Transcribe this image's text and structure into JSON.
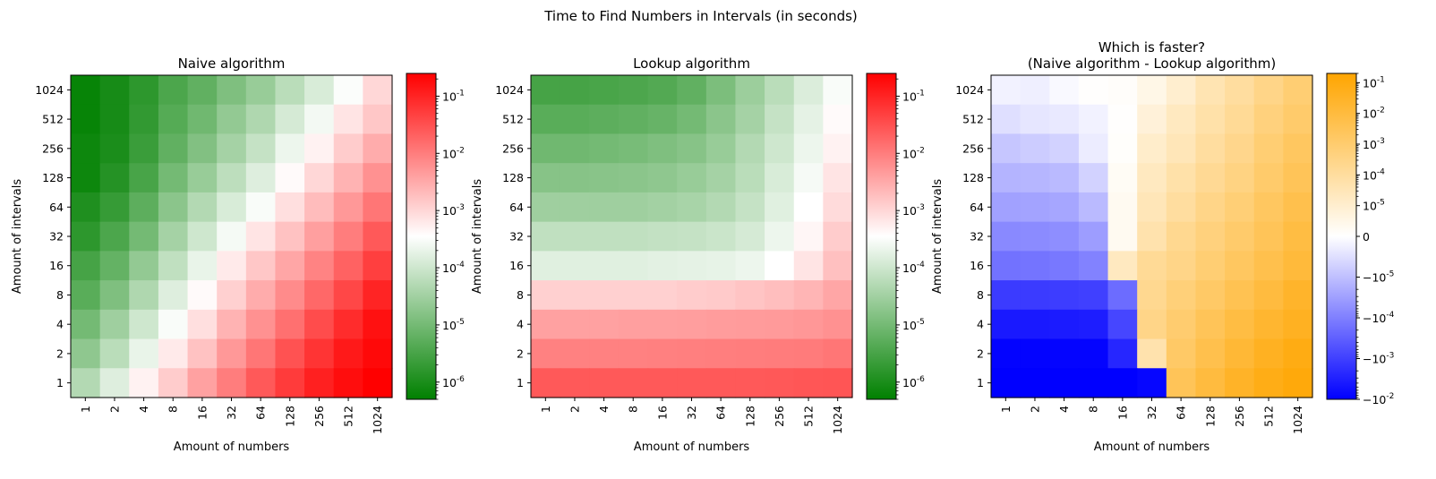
{
  "figure": {
    "suptitle": "Time to Find Numbers in Intervals (in seconds)"
  },
  "chart_data": [
    {
      "type": "heatmap",
      "title": "Naive algorithm",
      "title_color": "#0000ff",
      "xlabel": "Amount of numbers",
      "ylabel": "Amount of intervals",
      "x_categories": [
        "1",
        "2",
        "4",
        "8",
        "16",
        "32",
        "64",
        "128",
        "256",
        "512",
        "1024"
      ],
      "y_categories": [
        "1024",
        "512",
        "256",
        "128",
        "64",
        "32",
        "16",
        "8",
        "4",
        "2",
        "1"
      ],
      "colormap": [
        "#008000",
        "#ffffff",
        "#ff0000"
      ],
      "color_scale": "log",
      "color_range": [
        5e-07,
        0.25
      ],
      "colorbar_ticks": [
        "-6",
        "-5",
        "-4",
        "-3",
        "-2",
        "-1"
      ],
      "values": [
        [
          6e-07,
          9e-07,
          1.6e-06,
          3.5e-06,
          6e-06,
          1.3e-05,
          2.5e-05,
          6e-05,
          0.00013,
          0.00032,
          0.001
        ],
        [
          6e-07,
          9e-07,
          1.8e-06,
          4.5e-06,
          9e-06,
          2.2e-05,
          4.5e-05,
          0.00012,
          0.00026,
          0.0007,
          0.0015
        ],
        [
          7e-07,
          1e-06,
          2.2e-06,
          6e-06,
          1.4e-05,
          3.5e-05,
          8e-05,
          0.00022,
          0.0005,
          0.0013,
          0.003
        ],
        [
          7e-07,
          1.3e-06,
          3.2e-06,
          1e-05,
          2.5e-05,
          6.5e-05,
          0.00015,
          0.0004,
          0.001,
          0.0025,
          0.006
        ],
        [
          1.1e-06,
          2e-06,
          5.5e-06,
          1.8e-05,
          5e-05,
          0.00013,
          0.0003,
          0.0008,
          0.002,
          0.005,
          0.012
        ],
        [
          1.6e-06,
          3.5e-06,
          1e-05,
          3.5e-05,
          0.0001,
          0.00027,
          0.0007,
          0.0017,
          0.0042,
          0.01,
          0.025
        ],
        [
          3e-06,
          6.5e-06,
          2.2e-05,
          7e-05,
          0.0002,
          0.0006,
          0.0015,
          0.0035,
          0.0085,
          0.02,
          0.05
        ],
        [
          5e-06,
          1.3e-05,
          4.5e-05,
          0.00015,
          0.0004,
          0.0012,
          0.003,
          0.007,
          0.017,
          0.04,
          0.1
        ],
        [
          1e-05,
          3e-05,
          0.0001,
          0.0003,
          0.0008,
          0.0025,
          0.006,
          0.014,
          0.035,
          0.08,
          0.16
        ],
        [
          2e-05,
          6e-05,
          0.0002,
          0.0006,
          0.0017,
          0.005,
          0.012,
          0.03,
          0.065,
          0.13,
          0.2
        ],
        [
          5e-05,
          0.00015,
          0.0005,
          0.0013,
          0.004,
          0.01,
          0.025,
          0.055,
          0.11,
          0.18,
          0.25
        ]
      ]
    },
    {
      "type": "heatmap",
      "title": "Lookup algorithm",
      "title_color": "#ffa500",
      "xlabel": "Amount of numbers",
      "ylabel": "Amount of intervals",
      "x_categories": [
        "1",
        "2",
        "4",
        "8",
        "16",
        "32",
        "64",
        "128",
        "256",
        "512",
        "1024"
      ],
      "y_categories": [
        "1024",
        "512",
        "256",
        "128",
        "64",
        "32",
        "16",
        "8",
        "4",
        "2",
        "1"
      ],
      "colormap": [
        "#008000",
        "#ffffff",
        "#ff0000"
      ],
      "color_scale": "log",
      "color_range": [
        5e-07,
        0.25
      ],
      "colorbar_ticks": [
        "-6",
        "-5",
        "-4",
        "-3",
        "-2",
        "-1"
      ],
      "values": [
        [
          3e-06,
          3e-06,
          3.3e-06,
          3.6e-06,
          4.2e-06,
          6e-06,
          1.2e-05,
          2.8e-05,
          6e-05,
          0.00014,
          0.0003
        ],
        [
          5e-06,
          5e-06,
          5.5e-06,
          6e-06,
          7e-06,
          1e-05,
          1.8e-05,
          3.5e-05,
          8e-05,
          0.00018,
          0.0004
        ],
        [
          9e-06,
          9e-06,
          1e-05,
          1.1e-05,
          1.3e-05,
          1.6e-05,
          2.5e-05,
          5e-05,
          0.0001,
          0.00022,
          0.0005
        ],
        [
          1.6e-05,
          1.6e-05,
          1.7e-05,
          1.8e-05,
          2e-05,
          2.5e-05,
          3.5e-05,
          6e-05,
          0.00013,
          0.00028,
          0.0007
        ],
        [
          3e-05,
          3e-05,
          3e-05,
          3e-05,
          3.3e-05,
          3.8e-05,
          5e-05,
          8e-05,
          0.00016,
          0.00035,
          0.0009
        ],
        [
          7e-05,
          7e-05,
          7e-05,
          7e-05,
          7.5e-05,
          8e-05,
          9e-05,
          0.00012,
          0.00022,
          0.00045,
          0.0013
        ],
        [
          0.00016,
          0.00016,
          0.00016,
          0.00016,
          0.00017,
          0.00018,
          0.00019,
          0.00022,
          0.00035,
          0.0007,
          0.0018
        ],
        [
          0.0012,
          0.0012,
          0.0012,
          0.0012,
          0.0012,
          0.0013,
          0.0014,
          0.0016,
          0.0019,
          0.0024,
          0.0035
        ],
        [
          0.004,
          0.004,
          0.004,
          0.0042,
          0.0042,
          0.0043,
          0.0045,
          0.0046,
          0.0048,
          0.0052,
          0.006
        ],
        [
          0.009,
          0.009,
          0.009,
          0.009,
          0.0092,
          0.0095,
          0.0098,
          0.01,
          0.0102,
          0.0105,
          0.012
        ],
        [
          0.025,
          0.025,
          0.025,
          0.025,
          0.025,
          0.025,
          0.025,
          0.025,
          0.026,
          0.027,
          0.028
        ]
      ]
    },
    {
      "type": "heatmap",
      "title": "Which is faster?",
      "subtitle": "(Naive algorithm - Lookup algorithm)",
      "title_color": "#000000",
      "xlabel": "Amount of numbers",
      "ylabel": "Amount of intervals",
      "x_categories": [
        "1",
        "2",
        "4",
        "8",
        "16",
        "32",
        "64",
        "128",
        "256",
        "512",
        "1024"
      ],
      "y_categories": [
        "1024",
        "512",
        "256",
        "128",
        "64",
        "32",
        "16",
        "8",
        "4",
        "2",
        "1"
      ],
      "colormap": [
        "#0000ff",
        "#ffffff",
        "#ffa500"
      ],
      "color_scale": "symlog",
      "linthresh": 1e-05,
      "color_range": [
        -0.01,
        0.2
      ],
      "colorbar_ticks": [
        {
          "base": "10",
          "exp": "-1"
        },
        {
          "base": "10",
          "exp": "-2"
        },
        {
          "base": "10",
          "exp": "-3"
        },
        {
          "base": "10",
          "exp": "-4"
        },
        {
          "base": "10",
          "exp": "-5"
        },
        {
          "base": "0",
          "exp": ""
        },
        {
          "base": "−10",
          "exp": "-5"
        },
        {
          "base": "−10",
          "exp": "-4"
        },
        {
          "base": "−10",
          "exp": "-3"
        },
        {
          "base": "−10",
          "exp": "-2"
        }
      ],
      "values": [
        [
          -2e-06,
          -2.5e-06,
          -1e-06,
          5e-07,
          1e-06,
          5e-06,
          1e-05,
          4e-05,
          0.0001,
          0.0003,
          0.0008
        ],
        [
          -5e-06,
          -4e-06,
          -3.5e-06,
          -2e-06,
          5e-07,
          8e-06,
          2e-05,
          6e-05,
          0.00015,
          0.0005,
          0.0012
        ],
        [
          -9e-06,
          -8e-06,
          -7e-06,
          -3e-06,
          8e-07,
          1.2e-05,
          3e-05,
          0.0001,
          0.00025,
          0.0008,
          0.002
        ],
        [
          -1.5e-05,
          -1.4e-05,
          -1.2e-05,
          -7e-06,
          2e-06,
          2e-05,
          6e-05,
          0.00017,
          0.0004,
          0.0012,
          0.003
        ],
        [
          -3e-05,
          -2.8e-05,
          -2.5e-05,
          -1.2e-05,
          3e-06,
          3e-05,
          0.0001,
          0.0003,
          0.0007,
          0.002,
          0.005
        ],
        [
          -7e-05,
          -6.5e-05,
          -6e-05,
          -3.5e-05,
          3e-06,
          5e-05,
          0.0002,
          0.0005,
          0.0012,
          0.003,
          0.008
        ],
        [
          -0.00016,
          -0.00015,
          -0.00013,
          -9e-05,
          2e-05,
          0.00015,
          0.0003,
          0.0008,
          0.002,
          0.005,
          0.012
        ],
        [
          -0.0012,
          -0.0012,
          -0.0011,
          -0.001,
          -0.0002,
          0.0002,
          0.0006,
          0.0015,
          0.004,
          0.01,
          0.025
        ],
        [
          -0.004,
          -0.004,
          -0.0038,
          -0.0035,
          -0.0008,
          0.0003,
          0.001,
          0.003,
          0.008,
          0.02,
          0.04
        ],
        [
          -0.009,
          -0.009,
          -0.0088,
          -0.0085,
          -0.0025,
          5e-05,
          0.0015,
          0.005,
          0.015,
          0.04,
          0.08
        ],
        [
          -0.025,
          -0.025,
          -0.025,
          -0.024,
          -0.02,
          -0.008,
          0.003,
          0.01,
          0.03,
          0.07,
          0.12
        ]
      ]
    }
  ]
}
